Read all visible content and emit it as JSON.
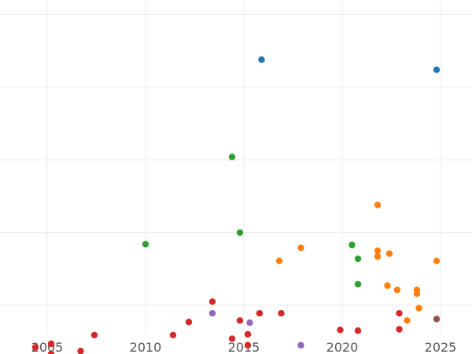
{
  "chart_data": {
    "type": "scatter",
    "title": "",
    "xlabel": "",
    "ylabel": "",
    "xlim": [
      2002.6,
      2026.6
    ],
    "x_ticks": [
      2005,
      2010,
      2015,
      2020,
      2025
    ],
    "x_tick_labels": [
      "2005",
      "2010",
      "2015",
      "2020",
      "2025"
    ],
    "y_gridlines": [
      0,
      1,
      2,
      3,
      4
    ],
    "ylim": [
      -0.4,
      4.2
    ],
    "y_tick_labels_visible": false,
    "grid": true,
    "legend": "none",
    "series": [
      {
        "color": "#1f77b4",
        "points": [
          [
            2015.9,
            3.38
          ],
          [
            2024.8,
            3.24
          ]
        ]
      },
      {
        "color": "#2ca02c",
        "points": [
          [
            2014.4,
            2.04
          ],
          [
            2010.0,
            0.84
          ],
          [
            2014.8,
            1.0
          ],
          [
            2020.8,
            0.64
          ],
          [
            2020.8,
            0.29
          ],
          [
            2020.5,
            0.83
          ]
        ]
      },
      {
        "color": "#ff7f0e",
        "points": [
          [
            2021.8,
            1.38
          ],
          [
            2017.9,
            0.79
          ],
          [
            2016.8,
            0.61
          ],
          [
            2021.8,
            0.75
          ],
          [
            2021.8,
            0.67
          ],
          [
            2022.4,
            0.71
          ],
          [
            2024.8,
            0.61
          ],
          [
            2022.3,
            0.27
          ],
          [
            2022.8,
            0.21
          ],
          [
            2023.8,
            0.21
          ],
          [
            2023.8,
            0.16
          ],
          [
            2023.9,
            -0.04
          ],
          [
            2023.3,
            -0.21
          ]
        ]
      },
      {
        "color": "#d62728",
        "points": [
          [
            2004.4,
            -0.58
          ],
          [
            2005.2,
            -0.53
          ],
          [
            2005.2,
            -0.67
          ],
          [
            2006.7,
            -0.63
          ],
          [
            2007.4,
            -0.41
          ],
          [
            2011.4,
            -0.41
          ],
          [
            2012.2,
            -0.23
          ],
          [
            2013.4,
            0.05
          ],
          [
            2014.4,
            -0.46
          ],
          [
            2014.8,
            -0.21
          ],
          [
            2015.2,
            -0.4
          ],
          [
            2015.2,
            -0.55
          ],
          [
            2015.8,
            -0.11
          ],
          [
            2016.9,
            -0.11
          ],
          [
            2019.9,
            -0.34
          ],
          [
            2020.8,
            -0.35
          ],
          [
            2022.9,
            -0.11
          ],
          [
            2022.9,
            -0.33
          ]
        ]
      },
      {
        "color": "#9467bd",
        "points": [
          [
            2013.4,
            -0.11
          ],
          [
            2015.3,
            -0.24
          ],
          [
            2017.9,
            -0.55
          ]
        ]
      },
      {
        "color": "#8c564b",
        "points": [
          [
            2024.8,
            -0.19
          ]
        ]
      }
    ]
  }
}
